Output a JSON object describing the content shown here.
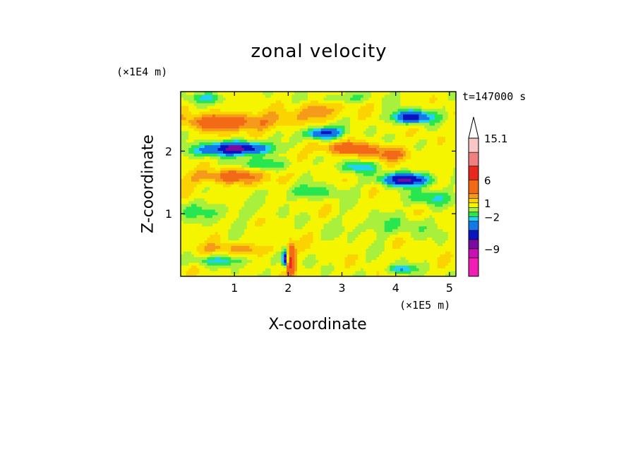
{
  "chart_data": {
    "type": "heatmap",
    "title": "zonal velocity",
    "xlabel": "X-coordinate",
    "ylabel": "Z-coordinate",
    "x_unit": "(×1E5 m)",
    "y_unit": "(×1E4 m)",
    "time_label": "t=147000 s",
    "xlim": [
      0,
      5.12
    ],
    "ylim": [
      0,
      2.95
    ],
    "x_ticks": [
      1,
      2,
      3,
      4,
      5
    ],
    "y_ticks": [
      1,
      2
    ],
    "colorbar": {
      "labels": [
        "15.1",
        "6",
        "1",
        "−2",
        "−9"
      ],
      "label_values": [
        15.1,
        6,
        1,
        -2,
        -9
      ],
      "bins": [
        {
          "lo": 12,
          "hi": 15.1,
          "color": "#f9c6c6"
        },
        {
          "lo": 9,
          "hi": 12,
          "color": "#f08080"
        },
        {
          "lo": 6,
          "hi": 9,
          "color": "#e8281e"
        },
        {
          "lo": 3,
          "hi": 6,
          "color": "#f26a15"
        },
        {
          "lo": 2,
          "hi": 3,
          "color": "#f59a1a"
        },
        {
          "lo": 1,
          "hi": 2,
          "color": "#fbd300"
        },
        {
          "lo": 0,
          "hi": 1,
          "color": "#f5f500"
        },
        {
          "lo": -1,
          "hi": 0,
          "color": "#a8f03c"
        },
        {
          "lo": -2,
          "hi": -1,
          "color": "#28e650"
        },
        {
          "lo": -3,
          "hi": -2,
          "color": "#23d2f0"
        },
        {
          "lo": -5,
          "hi": -3,
          "color": "#1478e6"
        },
        {
          "lo": -7,
          "hi": -5,
          "color": "#0a14be"
        },
        {
          "lo": -9,
          "hi": -7,
          "color": "#7a0aa0"
        },
        {
          "lo": -11,
          "hi": -9,
          "color": "#c80fb4"
        },
        {
          "lo": -15,
          "hi": -11,
          "color": "#f01eb4"
        }
      ],
      "extend": "max"
    }
  }
}
